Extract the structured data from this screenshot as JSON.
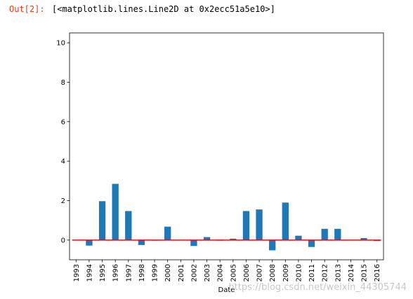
{
  "cell": {
    "prompt": "Out[2]:",
    "output": "[<matplotlib.lines.Line2D at 0x2ecc51a5e10>]"
  },
  "watermark": "https://blog.csdn.net/weixin_44305744",
  "colors": {
    "bar": "#1f77b4",
    "line": "#ff0000",
    "prompt": "#d84315"
  },
  "chart_data": {
    "type": "bar",
    "xlabel": "Date",
    "ylabel": "",
    "categories": [
      "1993",
      "1994",
      "1995",
      "1996",
      "1997",
      "1998",
      "1999",
      "2000",
      "2001",
      "2002",
      "2003",
      "2004",
      "2005",
      "2006",
      "2007",
      "2008",
      "2009",
      "2010",
      "2011",
      "2012",
      "2013",
      "2014",
      "2015",
      "2016"
    ],
    "values": [
      0.0,
      -0.28,
      1.97,
      2.85,
      1.47,
      -0.25,
      -0.03,
      0.68,
      0.0,
      -0.3,
      0.15,
      -0.03,
      0.07,
      1.47,
      1.55,
      -0.52,
      1.9,
      0.22,
      -0.35,
      0.57,
      0.57,
      0.0,
      0.1,
      -0.05
    ],
    "ylim": [
      -1.0,
      10.5
    ],
    "yticks": [
      0,
      2,
      4,
      6,
      8,
      10
    ],
    "hline": 0,
    "grid": false,
    "legend": "none"
  }
}
